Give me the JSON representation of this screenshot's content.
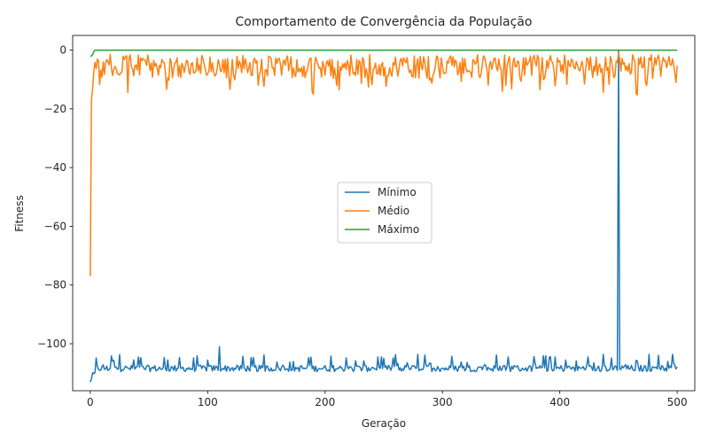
{
  "chart_data": {
    "type": "line",
    "title": "Comportamento de Convergência da População",
    "xlabel": "Geração",
    "ylabel": "Fitness",
    "xlim": [
      -15,
      515
    ],
    "ylim": [
      -116,
      5
    ],
    "xticks": [
      0,
      100,
      200,
      300,
      400,
      500
    ],
    "yticks": [
      0,
      -20,
      -40,
      -60,
      -80,
      -100
    ],
    "xtick_labels": [
      "0",
      "100",
      "200",
      "300",
      "400",
      "500"
    ],
    "ytick_labels": [
      "0",
      "−20",
      "−40",
      "−60",
      "−80",
      "−100"
    ],
    "legend_placement": "center",
    "grid": false,
    "series": [
      {
        "name": "Mínimo",
        "color": "#1f77b4",
        "description_of_values": "Fluctuates around -108 (range about -110 to -101) for generations 0-500; starts near -113 at generation 0; single spike to about 0 at generation 450",
        "key_points": [
          [
            0,
            -113
          ],
          [
            2,
            -111
          ],
          [
            5,
            -109
          ],
          [
            10,
            -108
          ],
          [
            50,
            -108
          ],
          [
            100,
            -108
          ],
          [
            110,
            -101
          ],
          [
            200,
            -108
          ],
          [
            300,
            -108
          ],
          [
            400,
            -108
          ],
          [
            449,
            -108
          ],
          [
            450,
            0
          ],
          [
            451,
            -108
          ],
          [
            500,
            -107
          ]
        ]
      },
      {
        "name": "Médio",
        "color": "#ff7f0e",
        "description_of_values": "Starts at about -77 at generation 0, jumps to about -17 at generation 1, then fluctuates between about -15 and -1 (centered near -6) through generation 500",
        "key_points": [
          [
            0,
            -77
          ],
          [
            1,
            -17
          ],
          [
            3,
            -8
          ],
          [
            10,
            -5
          ],
          [
            100,
            -6
          ],
          [
            190,
            -15
          ],
          [
            200,
            -6
          ],
          [
            300,
            -6
          ],
          [
            400,
            -6
          ],
          [
            450,
            0
          ],
          [
            500,
            -5
          ]
        ]
      },
      {
        "name": "Máximo",
        "color": "#2ca02c",
        "values_x": [
          0,
          1,
          2,
          3,
          4,
          500
        ],
        "values_y": [
          -2,
          -2,
          -1.5,
          -0.5,
          0,
          0
        ]
      }
    ]
  }
}
